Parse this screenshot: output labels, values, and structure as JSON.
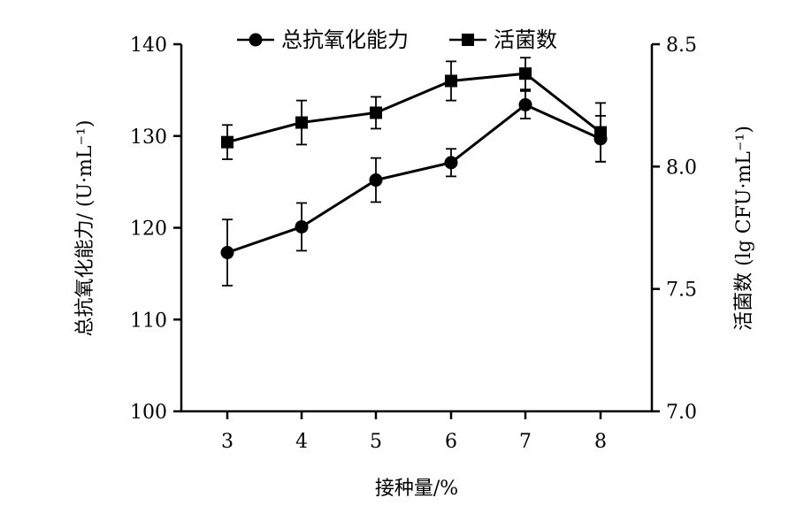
{
  "chart_data": {
    "type": "line",
    "xlabel": "接种量/%",
    "x": [
      3,
      4,
      5,
      6,
      7,
      8
    ],
    "x_ticks": [
      "3",
      "4",
      "5",
      "6",
      "7",
      "8"
    ],
    "y_left": {
      "label": "总抗氧化能力/ (U·mL⁻¹)",
      "lim": [
        100,
        140
      ],
      "ticks": [
        "100",
        "110",
        "120",
        "130",
        "140"
      ]
    },
    "y_right": {
      "label": "活菌数 (lg CFU·mL⁻¹)",
      "lim": [
        7.0,
        8.5
      ],
      "ticks": [
        "7.0",
        "7.5",
        "8.0",
        "8.5"
      ]
    },
    "legend_position": "top",
    "series": [
      {
        "name": "总抗氧化能力",
        "axis": "left",
        "marker": "circle",
        "values": [
          117.3,
          120.1,
          125.2,
          127.1,
          133.4,
          129.7
        ],
        "errors": [
          3.6,
          2.6,
          2.4,
          1.5,
          1.5,
          2.5
        ]
      },
      {
        "name": "活菌数",
        "axis": "right",
        "marker": "square",
        "values": [
          8.1,
          8.18,
          8.22,
          8.35,
          8.38,
          8.14
        ],
        "errors": [
          0.07,
          0.09,
          0.065,
          0.08,
          0.065,
          0.12
        ]
      }
    ],
    "grid": false
  }
}
